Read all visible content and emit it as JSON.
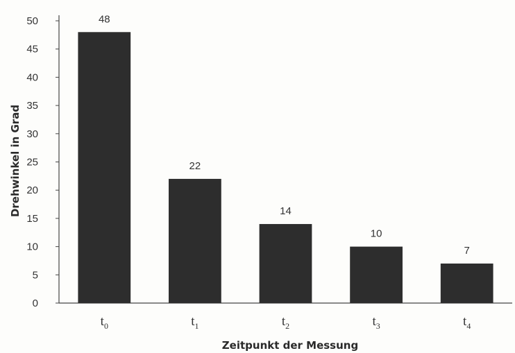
{
  "chart_data": {
    "type": "bar",
    "categories": [
      {
        "base": "t",
        "sub": "0"
      },
      {
        "base": "t",
        "sub": "1"
      },
      {
        "base": "t",
        "sub": "2"
      },
      {
        "base": "t",
        "sub": "3"
      },
      {
        "base": "t",
        "sub": "4"
      }
    ],
    "values": [
      48,
      22,
      14,
      10,
      7
    ],
    "data_labels": [
      "48",
      "22",
      "14",
      "10",
      "7"
    ],
    "title": "",
    "xlabel": "Zeitpunkt der Messung",
    "ylabel": "Drehwinkel in Grad",
    "ylim": [
      0,
      50
    ],
    "yticks": [
      0,
      5,
      10,
      15,
      20,
      25,
      30,
      35,
      40,
      45,
      50
    ],
    "grid": false,
    "legend": "none",
    "bar_color": "#2d2d2d",
    "axis_color": "#444444"
  }
}
